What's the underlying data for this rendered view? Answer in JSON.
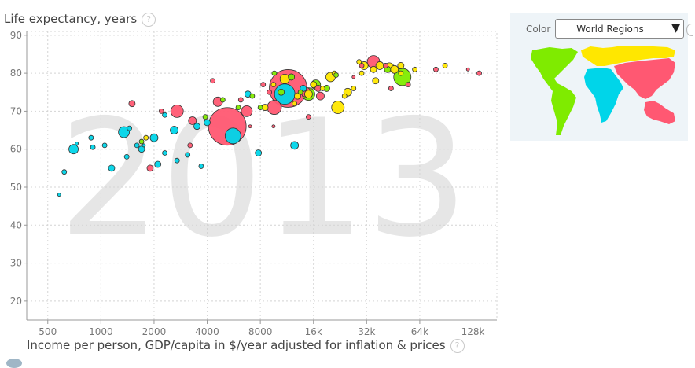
{
  "chart": {
    "y_title": "Life expectancy, years",
    "x_title": "Income per person, GDP/capita in $/year adjusted for inflation & prices",
    "help_glyph": "?",
    "year": "2013"
  },
  "panel": {
    "color_label": "Color",
    "color_value": "World Regions",
    "dropdown_glyph": "▼"
  },
  "colors": {
    "asia": "#ff5872",
    "africa": "#00d5e9",
    "europe": "#ffe700",
    "americas": "#7feb00"
  },
  "chart_data": {
    "type": "scatter",
    "title": "",
    "xlabel": "Income per person, GDP/capita in $/year adjusted for inflation & prices",
    "ylabel": "Life expectancy, years",
    "x_scale": "log2",
    "xlim": [
      380,
      175000
    ],
    "ylim": [
      15,
      91
    ],
    "x_ticks": [
      500,
      1000,
      2000,
      4000,
      8000,
      16000,
      32000,
      64000,
      128000
    ],
    "x_tick_labels": [
      "500",
      "1000",
      "2000",
      "4000",
      "8000",
      "16k",
      "32k",
      "64k",
      "128k"
    ],
    "y_ticks": [
      20,
      30,
      40,
      50,
      60,
      70,
      80,
      90
    ],
    "grid": true,
    "year": "2013",
    "color_by": "World Regions",
    "points": [
      {
        "region": "asia",
        "x": 11500,
        "y": 76,
        "r": 24
      },
      {
        "region": "asia",
        "x": 5200,
        "y": 66,
        "r": 24
      },
      {
        "region": "asia",
        "x": 35000,
        "y": 83,
        "r": 8
      },
      {
        "region": "asia",
        "x": 9600,
        "y": 71,
        "r": 9
      },
      {
        "region": "asia",
        "x": 2700,
        "y": 70,
        "r": 8
      },
      {
        "region": "asia",
        "x": 6700,
        "y": 70,
        "r": 7
      },
      {
        "region": "asia",
        "x": 14500,
        "y": 75,
        "r": 6
      },
      {
        "region": "asia",
        "x": 4600,
        "y": 72.5,
        "r": 6
      },
      {
        "region": "asia",
        "x": 3300,
        "y": 67.5,
        "r": 5
      },
      {
        "region": "asia",
        "x": 1500,
        "y": 72,
        "r": 4
      },
      {
        "region": "asia",
        "x": 1900,
        "y": 55,
        "r": 4
      },
      {
        "region": "asia",
        "x": 9000,
        "y": 75,
        "r": 3
      },
      {
        "region": "asia",
        "x": 15000,
        "y": 68.5,
        "r": 3
      },
      {
        "region": "asia",
        "x": 17000,
        "y": 76,
        "r": 4
      },
      {
        "region": "asia",
        "x": 17500,
        "y": 74,
        "r": 5
      },
      {
        "region": "asia",
        "x": 44000,
        "y": 76,
        "r": 3
      },
      {
        "region": "asia",
        "x": 2200,
        "y": 70,
        "r": 3
      },
      {
        "region": "asia",
        "x": 4300,
        "y": 78,
        "r": 3
      },
      {
        "region": "asia",
        "x": 6200,
        "y": 73,
        "r": 3
      },
      {
        "region": "asia",
        "x": 8300,
        "y": 77,
        "r": 3
      },
      {
        "region": "asia",
        "x": 9500,
        "y": 66,
        "r": 2
      },
      {
        "region": "asia",
        "x": 27000,
        "y": 79,
        "r": 2
      },
      {
        "region": "asia",
        "x": 55000,
        "y": 77,
        "r": 3
      },
      {
        "region": "asia",
        "x": 79000,
        "y": 81,
        "r": 3
      },
      {
        "region": "asia",
        "x": 139000,
        "y": 80,
        "r": 3
      },
      {
        "region": "asia",
        "x": 120000,
        "y": 81,
        "r": 2
      },
      {
        "region": "asia",
        "x": 3200,
        "y": 61,
        "r": 3
      },
      {
        "region": "asia",
        "x": 7000,
        "y": 66,
        "r": 2
      },
      {
        "region": "asia",
        "x": 41000,
        "y": 82,
        "r": 3
      },
      {
        "region": "asia",
        "x": 30000,
        "y": 82,
        "r": 3
      },
      {
        "region": "africa",
        "x": 5600,
        "y": 63.5,
        "r": 10
      },
      {
        "region": "africa",
        "x": 11000,
        "y": 74.5,
        "r": 13
      },
      {
        "region": "africa",
        "x": 1350,
        "y": 64.5,
        "r": 7
      },
      {
        "region": "africa",
        "x": 700,
        "y": 60,
        "r": 6
      },
      {
        "region": "africa",
        "x": 1700,
        "y": 60,
        "r": 4
      },
      {
        "region": "africa",
        "x": 2000,
        "y": 63,
        "r": 5
      },
      {
        "region": "africa",
        "x": 2600,
        "y": 65,
        "r": 5
      },
      {
        "region": "africa",
        "x": 3500,
        "y": 66,
        "r": 4
      },
      {
        "region": "africa",
        "x": 1150,
        "y": 55,
        "r": 4
      },
      {
        "region": "africa",
        "x": 880,
        "y": 63,
        "r": 3
      },
      {
        "region": "africa",
        "x": 620,
        "y": 54,
        "r": 3
      },
      {
        "region": "africa",
        "x": 1400,
        "y": 58,
        "r": 3
      },
      {
        "region": "africa",
        "x": 2100,
        "y": 56,
        "r": 4
      },
      {
        "region": "africa",
        "x": 2700,
        "y": 57,
        "r": 3
      },
      {
        "region": "africa",
        "x": 3100,
        "y": 58.5,
        "r": 3
      },
      {
        "region": "africa",
        "x": 3700,
        "y": 55.5,
        "r": 3
      },
      {
        "region": "africa",
        "x": 7800,
        "y": 59,
        "r": 4
      },
      {
        "region": "africa",
        "x": 12500,
        "y": 61,
        "r": 5
      },
      {
        "region": "africa",
        "x": 14000,
        "y": 76,
        "r": 4
      },
      {
        "region": "africa",
        "x": 1050,
        "y": 61,
        "r": 3
      },
      {
        "region": "africa",
        "x": 1600,
        "y": 61,
        "r": 3
      },
      {
        "region": "africa",
        "x": 900,
        "y": 60.5,
        "r": 3
      },
      {
        "region": "africa",
        "x": 4000,
        "y": 67,
        "r": 4
      },
      {
        "region": "africa",
        "x": 6800,
        "y": 74.5,
        "r": 4
      },
      {
        "region": "africa",
        "x": 2300,
        "y": 59,
        "r": 3
      },
      {
        "region": "africa",
        "x": 580,
        "y": 48,
        "r": 2
      },
      {
        "region": "africa",
        "x": 1750,
        "y": 61,
        "r": 2
      },
      {
        "region": "africa",
        "x": 2300,
        "y": 69,
        "r": 3
      },
      {
        "region": "africa",
        "x": 730,
        "y": 61.5,
        "r": 2
      },
      {
        "region": "africa",
        "x": 1450,
        "y": 65.5,
        "r": 3
      },
      {
        "region": "europe",
        "x": 11000,
        "y": 78.5,
        "r": 6
      },
      {
        "region": "europe",
        "x": 16000,
        "y": 77,
        "r": 4
      },
      {
        "region": "europe",
        "x": 20000,
        "y": 79,
        "r": 6
      },
      {
        "region": "europe",
        "x": 22000,
        "y": 71,
        "r": 8
      },
      {
        "region": "europe",
        "x": 25000,
        "y": 75,
        "r": 5
      },
      {
        "region": "europe",
        "x": 31000,
        "y": 82,
        "r": 5
      },
      {
        "region": "europe",
        "x": 35000,
        "y": 81,
        "r": 4
      },
      {
        "region": "europe",
        "x": 38000,
        "y": 82,
        "r": 5
      },
      {
        "region": "europe",
        "x": 43000,
        "y": 81.5,
        "r": 6
      },
      {
        "region": "europe",
        "x": 46000,
        "y": 81,
        "r": 5
      },
      {
        "region": "europe",
        "x": 50000,
        "y": 82,
        "r": 4
      },
      {
        "region": "europe",
        "x": 60000,
        "y": 81,
        "r": 3
      },
      {
        "region": "europe",
        "x": 89000,
        "y": 82,
        "r": 3
      },
      {
        "region": "europe",
        "x": 8500,
        "y": 71,
        "r": 4
      },
      {
        "region": "europe",
        "x": 13000,
        "y": 74,
        "r": 4
      },
      {
        "region": "europe",
        "x": 15000,
        "y": 74.5,
        "r": 5
      },
      {
        "region": "europe",
        "x": 18000,
        "y": 76,
        "r": 3
      },
      {
        "region": "europe",
        "x": 21000,
        "y": 80,
        "r": 3
      },
      {
        "region": "europe",
        "x": 24000,
        "y": 74,
        "r": 3
      },
      {
        "region": "europe",
        "x": 27000,
        "y": 76,
        "r": 3
      },
      {
        "region": "europe",
        "x": 29000,
        "y": 83,
        "r": 3
      },
      {
        "region": "europe",
        "x": 9500,
        "y": 77,
        "r": 3
      },
      {
        "region": "europe",
        "x": 1800,
        "y": 63,
        "r": 3
      },
      {
        "region": "europe",
        "x": 12500,
        "y": 72,
        "r": 3
      },
      {
        "region": "europe",
        "x": 36000,
        "y": 78,
        "r": 4
      },
      {
        "region": "europe",
        "x": 50000,
        "y": 80,
        "r": 3
      },
      {
        "region": "europe",
        "x": 30000,
        "y": 80,
        "r": 3
      },
      {
        "region": "americas",
        "x": 51000,
        "y": 79,
        "r": 11
      },
      {
        "region": "americas",
        "x": 15000,
        "y": 74.5,
        "r": 8
      },
      {
        "region": "americas",
        "x": 16500,
        "y": 77,
        "r": 6
      },
      {
        "region": "americas",
        "x": 12000,
        "y": 79,
        "r": 4
      },
      {
        "region": "americas",
        "x": 10500,
        "y": 75,
        "r": 4
      },
      {
        "region": "americas",
        "x": 7200,
        "y": 74,
        "r": 3
      },
      {
        "region": "americas",
        "x": 8000,
        "y": 71,
        "r": 3
      },
      {
        "region": "americas",
        "x": 19000,
        "y": 76,
        "r": 4
      },
      {
        "region": "americas",
        "x": 21500,
        "y": 79.5,
        "r": 3
      },
      {
        "region": "americas",
        "x": 42000,
        "y": 81,
        "r": 4
      },
      {
        "region": "americas",
        "x": 6000,
        "y": 71,
        "r": 3
      },
      {
        "region": "americas",
        "x": 4900,
        "y": 73,
        "r": 3
      },
      {
        "region": "americas",
        "x": 3900,
        "y": 68.5,
        "r": 3
      },
      {
        "region": "americas",
        "x": 1700,
        "y": 62,
        "r": 3
      },
      {
        "region": "americas",
        "x": 13500,
        "y": 75,
        "r": 3
      },
      {
        "region": "americas",
        "x": 9600,
        "y": 80,
        "r": 3
      }
    ]
  }
}
